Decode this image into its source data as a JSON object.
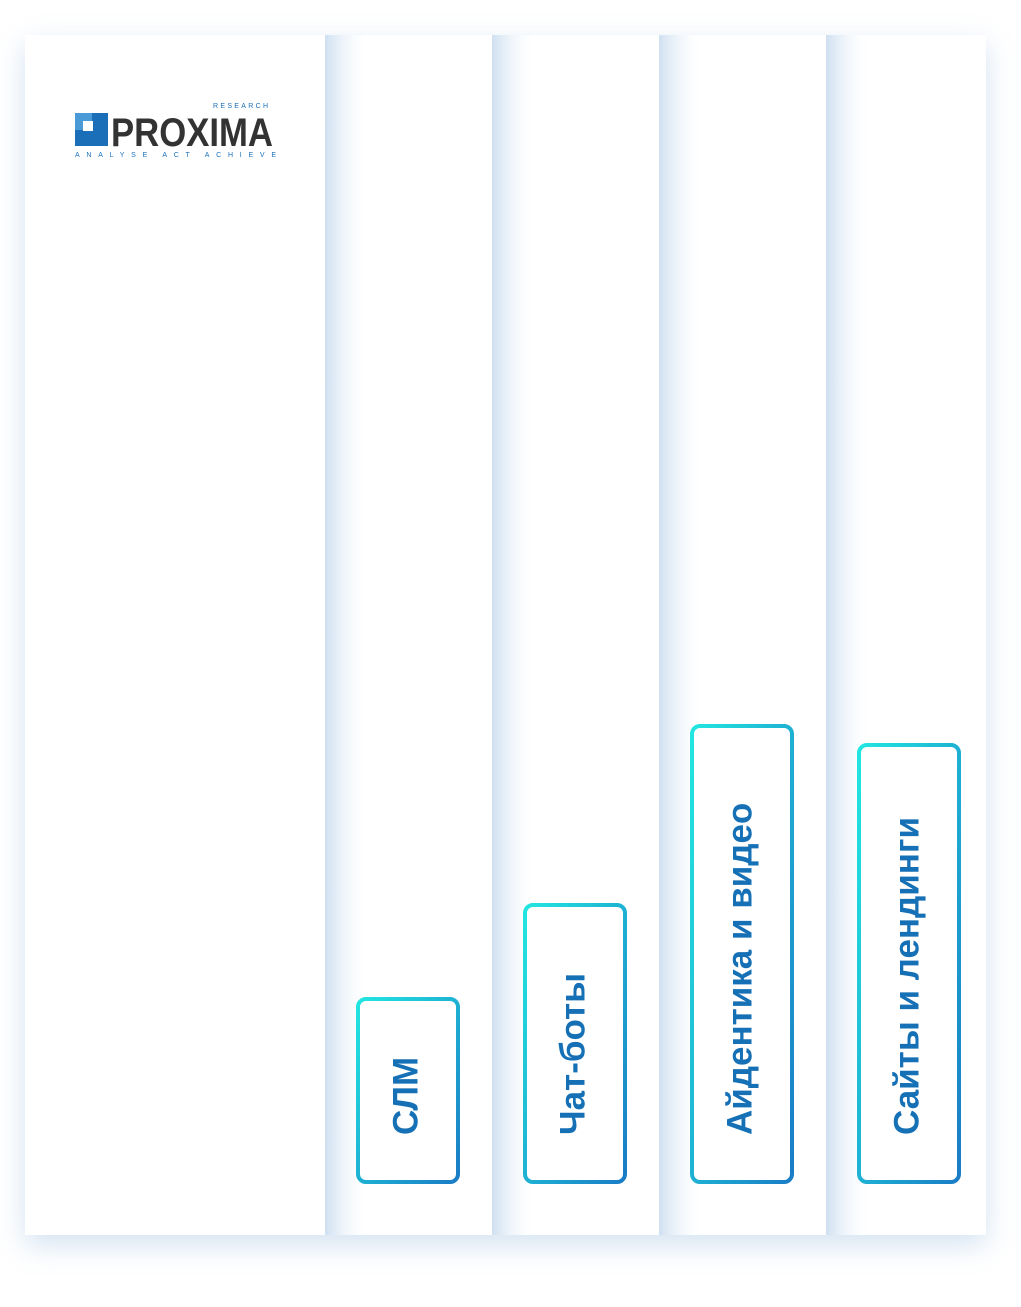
{
  "logo": {
    "name": "PROXIMA",
    "tag": "RESEARCH",
    "slogan": "ANALYSE ACT ACHIEVE"
  },
  "tabs": [
    {
      "label": "СЛМ"
    },
    {
      "label": "Чат-боты"
    },
    {
      "label": "Айдентика и видео"
    },
    {
      "label": "Сайты и лендинги"
    }
  ]
}
